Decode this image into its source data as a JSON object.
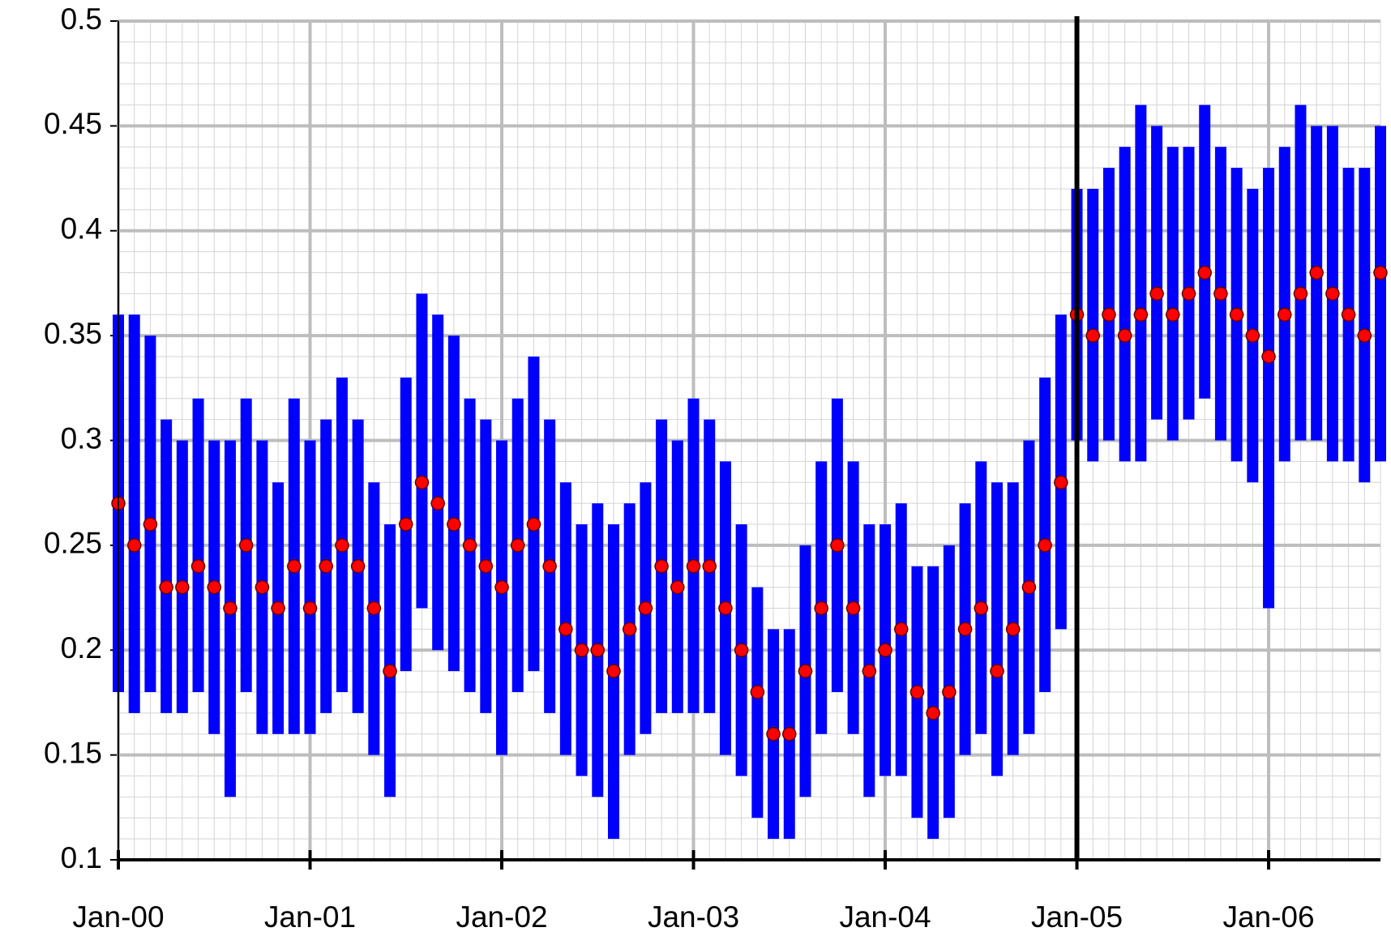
{
  "chart_data": {
    "type": "range_scatter",
    "x": [
      "Jan-00",
      null,
      null,
      null,
      null,
      null,
      null,
      null,
      null,
      null,
      null,
      null,
      "Jan-01",
      null,
      null,
      null,
      null,
      null,
      null,
      null,
      null,
      null,
      null,
      null,
      "Jan-02",
      null,
      null,
      null,
      null,
      null,
      null,
      null,
      null,
      null,
      null,
      null,
      "Jan-03",
      null,
      null,
      null,
      null,
      null,
      null,
      null,
      null,
      null,
      null,
      null,
      "Jan-04",
      null,
      null,
      null,
      null,
      null,
      null,
      null,
      null,
      null,
      null,
      null,
      "Jan-05",
      null,
      null,
      null,
      null,
      null,
      null,
      null,
      null,
      null,
      null,
      null,
      "Jan-06",
      null,
      null,
      null,
      null,
      null,
      null,
      null
    ],
    "low": [
      0.18,
      0.17,
      0.18,
      0.17,
      0.17,
      0.18,
      0.16,
      0.13,
      0.18,
      0.16,
      0.16,
      0.16,
      0.16,
      0.17,
      0.18,
      0.17,
      0.15,
      0.13,
      0.19,
      0.22,
      0.2,
      0.19,
      0.18,
      0.17,
      0.15,
      0.18,
      0.19,
      0.17,
      0.15,
      0.14,
      0.13,
      0.11,
      0.15,
      0.16,
      0.17,
      0.17,
      0.17,
      0.17,
      0.15,
      0.14,
      0.12,
      0.11,
      0.11,
      0.13,
      0.16,
      0.18,
      0.16,
      0.13,
      0.14,
      0.14,
      0.12,
      0.11,
      0.12,
      0.15,
      0.16,
      0.14,
      0.15,
      0.16,
      0.18,
      0.21,
      0.3,
      0.29,
      0.3,
      0.29,
      0.29,
      0.31,
      0.3,
      0.31,
      0.32,
      0.3,
      0.29,
      0.28,
      0.22,
      0.29,
      0.3,
      0.3,
      0.29,
      0.29,
      0.28,
      0.29
    ],
    "high": [
      0.36,
      0.36,
      0.35,
      0.31,
      0.3,
      0.32,
      0.3,
      0.3,
      0.32,
      0.3,
      0.28,
      0.32,
      0.3,
      0.31,
      0.33,
      0.31,
      0.28,
      0.26,
      0.33,
      0.37,
      0.36,
      0.35,
      0.32,
      0.31,
      0.3,
      0.32,
      0.34,
      0.31,
      0.28,
      0.26,
      0.27,
      0.26,
      0.27,
      0.28,
      0.31,
      0.3,
      0.32,
      0.31,
      0.29,
      0.26,
      0.23,
      0.21,
      0.21,
      0.25,
      0.29,
      0.32,
      0.29,
      0.26,
      0.26,
      0.27,
      0.24,
      0.24,
      0.25,
      0.27,
      0.29,
      0.28,
      0.28,
      0.3,
      0.33,
      0.36,
      0.42,
      0.42,
      0.43,
      0.44,
      0.46,
      0.45,
      0.44,
      0.44,
      0.46,
      0.44,
      0.43,
      0.42,
      0.43,
      0.44,
      0.46,
      0.45,
      0.45,
      0.43,
      0.43,
      0.45
    ],
    "values": [
      0.27,
      0.25,
      0.26,
      0.23,
      0.23,
      0.24,
      0.23,
      0.22,
      0.25,
      0.23,
      0.22,
      0.24,
      0.22,
      0.24,
      0.25,
      0.24,
      0.22,
      0.19,
      0.26,
      0.28,
      0.27,
      0.26,
      0.25,
      0.24,
      0.23,
      0.25,
      0.26,
      0.24,
      0.21,
      0.2,
      0.2,
      0.19,
      0.21,
      0.22,
      0.24,
      0.23,
      0.24,
      0.24,
      0.22,
      0.2,
      0.18,
      0.16,
      0.16,
      0.19,
      0.22,
      0.25,
      0.22,
      0.19,
      0.2,
      0.21,
      0.18,
      0.17,
      0.18,
      0.21,
      0.22,
      0.19,
      0.21,
      0.23,
      0.25,
      0.28,
      0.36,
      0.35,
      0.36,
      0.35,
      0.36,
      0.37,
      0.36,
      0.37,
      0.38,
      0.37,
      0.36,
      0.35,
      0.34,
      0.36,
      0.37,
      0.38,
      0.37,
      0.36,
      0.35,
      0.38
    ],
    "range_color": "#0000ff",
    "color": "#ff0000",
    "ylim": [
      0.1,
      0.5
    ],
    "yticks": [
      0.1,
      0.15,
      0.2,
      0.25,
      0.3,
      0.35,
      0.4,
      0.45,
      0.5
    ],
    "reference_line": "Jan-05",
    "grid": true
  }
}
